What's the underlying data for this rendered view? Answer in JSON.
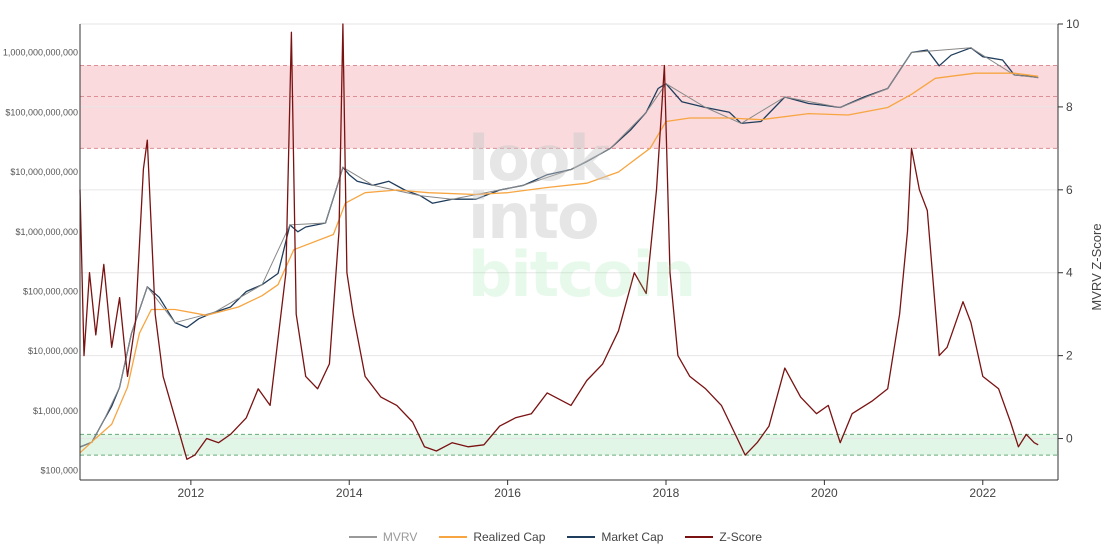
{
  "chart_data": {
    "type": "line",
    "title": "",
    "left_axis": {
      "scale": "log",
      "range": [
        70000,
        3000000000000
      ],
      "ticks": [
        {
          "value": 100000,
          "label": "$100,000"
        },
        {
          "value": 1000000,
          "label": "$1,000,000"
        },
        {
          "value": 10000000,
          "label": "$10,000,000"
        },
        {
          "value": 100000000,
          "label": "$100,000,000"
        },
        {
          "value": 1000000000,
          "label": "$1,000,000,000"
        },
        {
          "value": 10000000000,
          "label": "$10,000,000,000"
        },
        {
          "value": 100000000000,
          "label": "$100,000,000,000"
        },
        {
          "value": 1000000000000,
          "label": "1,000,000,000,000"
        }
      ]
    },
    "right_axis": {
      "label": "MVRV Z-Score",
      "scale": "linear",
      "range": [
        -1,
        10
      ],
      "ticks": [
        0,
        2,
        4,
        6,
        8,
        10
      ]
    },
    "x_axis": {
      "type": "date",
      "range": [
        2010.6,
        2022.95
      ],
      "ticks": [
        {
          "value": 2012,
          "label": "2012"
        },
        {
          "value": 2014,
          "label": "2014"
        },
        {
          "value": 2016,
          "label": "2016"
        },
        {
          "value": 2018,
          "label": "2018"
        },
        {
          "value": 2020,
          "label": "2020"
        },
        {
          "value": 2022,
          "label": "2022"
        }
      ]
    },
    "bands": [
      {
        "name": "top",
        "axis": "right",
        "from": 7,
        "to": 9,
        "mid": 8.25,
        "fill": "#fadadd",
        "line": "#d98f95"
      },
      {
        "name": "bottom",
        "axis": "right",
        "from": -0.4,
        "to": 0.1,
        "fill": "#e2f6e8",
        "line": "#6aab7a"
      }
    ],
    "series": [
      {
        "name": "Market Cap",
        "axis": "left",
        "color": "#1f3d5c",
        "points": [
          [
            2010.6,
            250000
          ],
          [
            2010.75,
            300000
          ],
          [
            2010.9,
            700000
          ],
          [
            2011.0,
            1200000
          ],
          [
            2011.1,
            2500000
          ],
          [
            2011.25,
            20000000
          ],
          [
            2011.45,
            120000000
          ],
          [
            2011.6,
            80000000
          ],
          [
            2011.8,
            30000000
          ],
          [
            2011.95,
            25000000
          ],
          [
            2012.1,
            35000000
          ],
          [
            2012.3,
            45000000
          ],
          [
            2012.5,
            55000000
          ],
          [
            2012.7,
            100000000
          ],
          [
            2012.9,
            130000000
          ],
          [
            2013.1,
            200000000
          ],
          [
            2013.25,
            1300000000
          ],
          [
            2013.35,
            1000000000
          ],
          [
            2013.45,
            1200000000
          ],
          [
            2013.7,
            1400000000
          ],
          [
            2013.85,
            6000000000
          ],
          [
            2013.92,
            12000000000
          ],
          [
            2014.0,
            9000000000
          ],
          [
            2014.1,
            7000000000
          ],
          [
            2014.3,
            6000000000
          ],
          [
            2014.5,
            7000000000
          ],
          [
            2014.7,
            5000000000
          ],
          [
            2014.9,
            4000000000
          ],
          [
            2015.05,
            3000000000
          ],
          [
            2015.3,
            3500000000
          ],
          [
            2015.6,
            3500000000
          ],
          [
            2015.9,
            5000000000
          ],
          [
            2016.2,
            6000000000
          ],
          [
            2016.5,
            9000000000
          ],
          [
            2016.8,
            11000000000
          ],
          [
            2017.0,
            15000000000
          ],
          [
            2017.3,
            25000000000
          ],
          [
            2017.55,
            50000000000
          ],
          [
            2017.75,
            100000000000
          ],
          [
            2017.9,
            250000000000
          ],
          [
            2018.0,
            300000000000
          ],
          [
            2018.2,
            150000000000
          ],
          [
            2018.5,
            120000000000
          ],
          [
            2018.8,
            100000000000
          ],
          [
            2018.95,
            65000000000
          ],
          [
            2019.2,
            70000000000
          ],
          [
            2019.5,
            180000000000
          ],
          [
            2019.8,
            140000000000
          ],
          [
            2020.0,
            130000000000
          ],
          [
            2020.2,
            120000000000
          ],
          [
            2020.5,
            180000000000
          ],
          [
            2020.8,
            250000000000
          ],
          [
            2020.95,
            500000000000
          ],
          [
            2021.1,
            1000000000000
          ],
          [
            2021.3,
            1100000000000
          ],
          [
            2021.45,
            600000000000
          ],
          [
            2021.6,
            900000000000
          ],
          [
            2021.85,
            1200000000000
          ],
          [
            2022.0,
            850000000000
          ],
          [
            2022.25,
            750000000000
          ],
          [
            2022.4,
            420000000000
          ],
          [
            2022.6,
            400000000000
          ],
          [
            2022.7,
            380000000000
          ]
        ]
      },
      {
        "name": "MVRV",
        "axis": "left",
        "color": "#888888",
        "points": [
          [
            2010.6,
            250000
          ],
          [
            2010.75,
            300000
          ],
          [
            2010.9,
            700000
          ],
          [
            2011.1,
            2500000
          ],
          [
            2011.25,
            20000000
          ],
          [
            2011.45,
            120000000
          ],
          [
            2011.8,
            30000000
          ],
          [
            2012.3,
            45000000
          ],
          [
            2012.9,
            130000000
          ],
          [
            2013.25,
            1300000000
          ],
          [
            2013.7,
            1400000000
          ],
          [
            2013.92,
            12000000000
          ],
          [
            2014.3,
            6000000000
          ],
          [
            2014.9,
            4000000000
          ],
          [
            2015.3,
            3500000000
          ],
          [
            2016.2,
            6000000000
          ],
          [
            2016.8,
            11000000000
          ],
          [
            2017.3,
            25000000000
          ],
          [
            2017.75,
            100000000000
          ],
          [
            2018.0,
            300000000000
          ],
          [
            2018.5,
            120000000000
          ],
          [
            2018.95,
            65000000000
          ],
          [
            2019.5,
            180000000000
          ],
          [
            2020.2,
            120000000000
          ],
          [
            2020.8,
            250000000000
          ],
          [
            2021.1,
            1000000000000
          ],
          [
            2021.85,
            1200000000000
          ],
          [
            2022.4,
            420000000000
          ],
          [
            2022.7,
            380000000000
          ]
        ]
      },
      {
        "name": "Realized Cap",
        "axis": "left",
        "color": "#f7a541",
        "points": [
          [
            2010.6,
            200000
          ],
          [
            2010.8,
            350000
          ],
          [
            2011.0,
            600000
          ],
          [
            2011.2,
            2500000
          ],
          [
            2011.35,
            20000000
          ],
          [
            2011.5,
            50000000
          ],
          [
            2011.8,
            50000000
          ],
          [
            2012.2,
            40000000
          ],
          [
            2012.6,
            55000000
          ],
          [
            2012.9,
            85000000
          ],
          [
            2013.1,
            130000000
          ],
          [
            2013.3,
            500000000
          ],
          [
            2013.8,
            900000000
          ],
          [
            2013.95,
            3000000000
          ],
          [
            2014.2,
            4500000000
          ],
          [
            2014.6,
            5000000000
          ],
          [
            2015.0,
            4500000000
          ],
          [
            2015.6,
            4200000000
          ],
          [
            2016.0,
            4500000000
          ],
          [
            2016.5,
            5500000000
          ],
          [
            2017.0,
            6500000000
          ],
          [
            2017.4,
            10000000000
          ],
          [
            2017.8,
            25000000000
          ],
          [
            2018.0,
            70000000000
          ],
          [
            2018.3,
            80000000000
          ],
          [
            2018.8,
            80000000000
          ],
          [
            2019.2,
            75000000000
          ],
          [
            2019.8,
            95000000000
          ],
          [
            2020.3,
            90000000000
          ],
          [
            2020.8,
            120000000000
          ],
          [
            2021.1,
            200000000000
          ],
          [
            2021.4,
            370000000000
          ],
          [
            2021.9,
            450000000000
          ],
          [
            2022.4,
            450000000000
          ],
          [
            2022.7,
            400000000000
          ]
        ]
      },
      {
        "name": "Z-Score",
        "axis": "right",
        "color": "#7a1212",
        "points": [
          [
            2010.6,
            6
          ],
          [
            2010.65,
            2
          ],
          [
            2010.72,
            4
          ],
          [
            2010.8,
            2.5
          ],
          [
            2010.9,
            4.2
          ],
          [
            2011.0,
            2.2
          ],
          [
            2011.1,
            3.4
          ],
          [
            2011.2,
            1.5
          ],
          [
            2011.3,
            2.8
          ],
          [
            2011.4,
            6.5
          ],
          [
            2011.45,
            7.2
          ],
          [
            2011.55,
            3
          ],
          [
            2011.65,
            1.5
          ],
          [
            2011.8,
            0.5
          ],
          [
            2011.95,
            -0.5
          ],
          [
            2012.05,
            -0.4
          ],
          [
            2012.2,
            0
          ],
          [
            2012.35,
            -0.1
          ],
          [
            2012.5,
            0.1
          ],
          [
            2012.7,
            0.5
          ],
          [
            2012.85,
            1.2
          ],
          [
            2013.0,
            0.8
          ],
          [
            2013.2,
            4
          ],
          [
            2013.27,
            9.8
          ],
          [
            2013.33,
            3
          ],
          [
            2013.45,
            1.5
          ],
          [
            2013.6,
            1.2
          ],
          [
            2013.75,
            1.8
          ],
          [
            2013.87,
            5
          ],
          [
            2013.92,
            10
          ],
          [
            2013.97,
            4
          ],
          [
            2014.05,
            3
          ],
          [
            2014.2,
            1.5
          ],
          [
            2014.4,
            1
          ],
          [
            2014.6,
            0.8
          ],
          [
            2014.8,
            0.4
          ],
          [
            2014.95,
            -0.2
          ],
          [
            2015.1,
            -0.3
          ],
          [
            2015.3,
            -0.1
          ],
          [
            2015.5,
            -0.2
          ],
          [
            2015.7,
            -0.15
          ],
          [
            2015.9,
            0.3
          ],
          [
            2016.1,
            0.5
          ],
          [
            2016.3,
            0.6
          ],
          [
            2016.5,
            1.1
          ],
          [
            2016.8,
            0.8
          ],
          [
            2017.0,
            1.4
          ],
          [
            2017.2,
            1.8
          ],
          [
            2017.4,
            2.6
          ],
          [
            2017.6,
            4
          ],
          [
            2017.75,
            3.5
          ],
          [
            2017.88,
            6
          ],
          [
            2017.98,
            9
          ],
          [
            2018.05,
            4
          ],
          [
            2018.15,
            2
          ],
          [
            2018.3,
            1.5
          ],
          [
            2018.5,
            1.2
          ],
          [
            2018.7,
            0.8
          ],
          [
            2018.9,
            0
          ],
          [
            2019.0,
            -0.4
          ],
          [
            2019.15,
            -0.1
          ],
          [
            2019.3,
            0.3
          ],
          [
            2019.5,
            1.7
          ],
          [
            2019.7,
            1
          ],
          [
            2019.9,
            0.6
          ],
          [
            2020.05,
            0.8
          ],
          [
            2020.2,
            -0.1
          ],
          [
            2020.35,
            0.6
          ],
          [
            2020.6,
            0.9
          ],
          [
            2020.8,
            1.2
          ],
          [
            2020.95,
            3
          ],
          [
            2021.05,
            5
          ],
          [
            2021.1,
            7
          ],
          [
            2021.2,
            6
          ],
          [
            2021.3,
            5.5
          ],
          [
            2021.45,
            2
          ],
          [
            2021.55,
            2.2
          ],
          [
            2021.75,
            3.3
          ],
          [
            2021.85,
            2.8
          ],
          [
            2022.0,
            1.5
          ],
          [
            2022.2,
            1.2
          ],
          [
            2022.35,
            0.4
          ],
          [
            2022.45,
            -0.2
          ],
          [
            2022.55,
            0.1
          ],
          [
            2022.65,
            -0.1
          ],
          [
            2022.7,
            -0.15
          ]
        ]
      }
    ],
    "legend": {
      "placement": "bottom-center",
      "items": [
        {
          "label": "MVRV",
          "color": "#999999"
        },
        {
          "label": "Realized Cap",
          "color": "#f7a541"
        },
        {
          "label": "Market Cap",
          "color": "#1f3d5c"
        },
        {
          "label": "Z-Score",
          "color": "#7a1212"
        }
      ]
    },
    "grid": true
  },
  "watermark": {
    "line1": "look",
    "line2": "into",
    "line3": "bitcoin"
  }
}
